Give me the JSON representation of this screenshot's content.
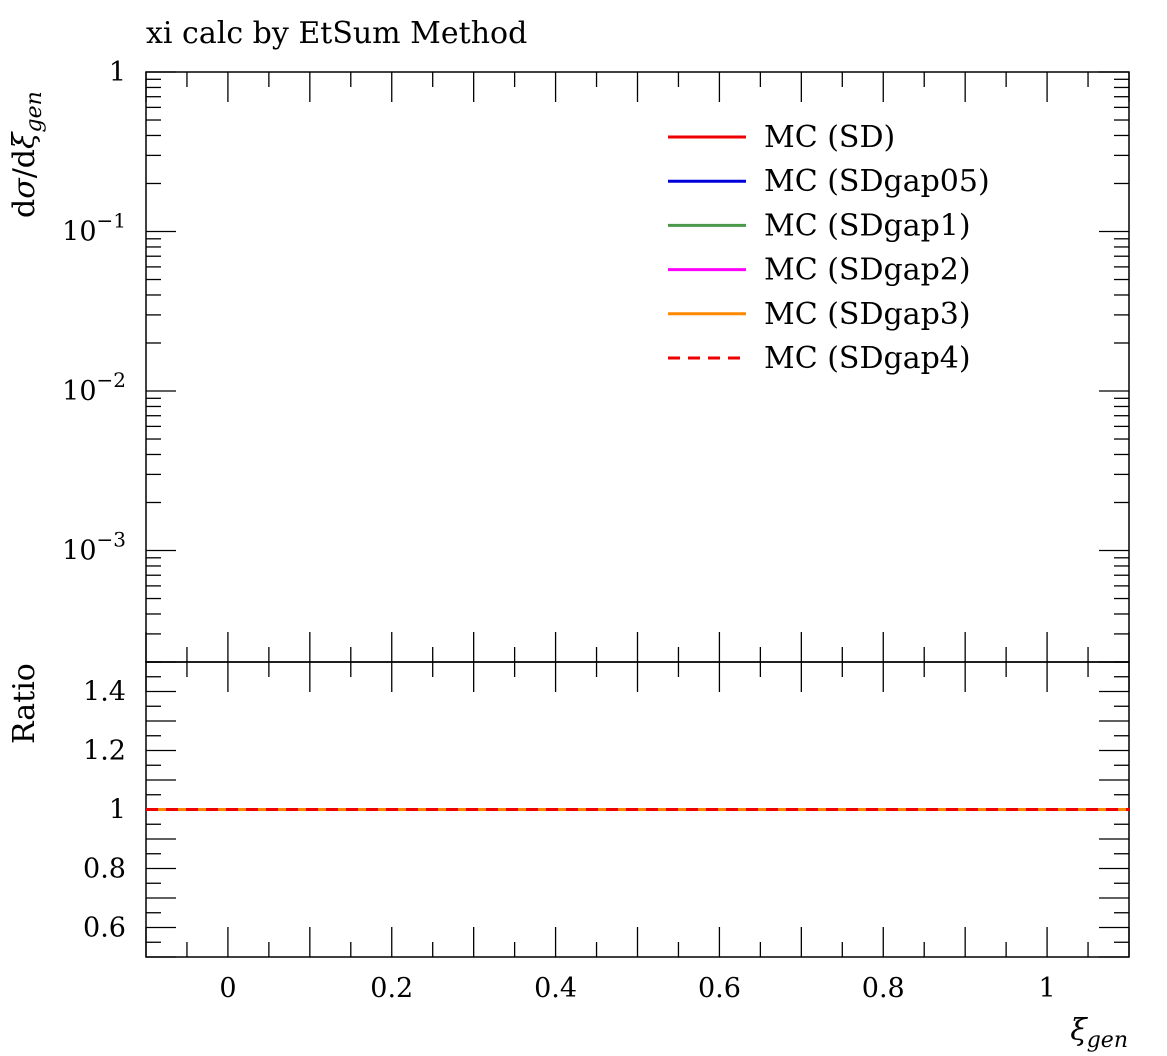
{
  "chart_data": {
    "type": "line",
    "title": "xi calc by EtSum Method",
    "ylabel_main": "dσ/dξgen",
    "ylabel_ratio": "Ratio",
    "xlabel": "ξgen",
    "xlim": [
      -0.1,
      1.1
    ],
    "ylim_main": [
      0.0002,
      1
    ],
    "yscale_main": "log",
    "ylim_ratio": [
      0.5,
      1.5
    ],
    "x_ticks": [
      {
        "value": 0,
        "label": "0"
      },
      {
        "value": 0.2,
        "label": "0.2"
      },
      {
        "value": 0.4,
        "label": "0.4"
      },
      {
        "value": 0.6,
        "label": "0.6"
      },
      {
        "value": 0.8,
        "label": "0.8"
      },
      {
        "value": 1,
        "label": "1"
      }
    ],
    "y_ticks_main": [
      {
        "value": 1,
        "base": "1",
        "exp": ""
      },
      {
        "value": 0.1,
        "base": "10",
        "exp": "−1"
      },
      {
        "value": 0.01,
        "base": "10",
        "exp": "−2"
      },
      {
        "value": 0.001,
        "base": "10",
        "exp": "−3"
      }
    ],
    "y_ticks_ratio": [
      {
        "value": 1.4,
        "label": "1.4"
      },
      {
        "value": 1.2,
        "label": "1.2"
      },
      {
        "value": 1.0,
        "label": "1"
      },
      {
        "value": 0.8,
        "label": "0.8"
      },
      {
        "value": 0.6,
        "label": "0.6"
      }
    ],
    "legend_position": "top-right",
    "series": [
      {
        "name": "MC (SD)",
        "color": "#ee0000",
        "dash": "",
        "ratio": [
          [
            -0.1,
            1
          ],
          [
            1.1,
            1
          ]
        ]
      },
      {
        "name": "MC (SDgap05)",
        "color": "#0000dd",
        "dash": "",
        "ratio": [
          [
            -0.1,
            1
          ],
          [
            1.1,
            1
          ]
        ]
      },
      {
        "name": "MC (SDgap1)",
        "color": "#4a9a4a",
        "dash": "",
        "ratio": [
          [
            -0.1,
            1
          ],
          [
            1.1,
            1
          ]
        ]
      },
      {
        "name": "MC (SDgap2)",
        "color": "#ff00ff",
        "dash": "",
        "ratio": [
          [
            -0.1,
            1
          ],
          [
            1.1,
            1
          ]
        ]
      },
      {
        "name": "MC (SDgap3)",
        "color": "#ff8800",
        "dash": "",
        "ratio": [
          [
            -0.1,
            1
          ],
          [
            1.1,
            1
          ]
        ]
      },
      {
        "name": "MC (SDgap4)",
        "color": "#ee0000",
        "dash": "12,8",
        "ratio": [
          [
            -0.1,
            1
          ],
          [
            1.1,
            1
          ]
        ]
      }
    ]
  }
}
